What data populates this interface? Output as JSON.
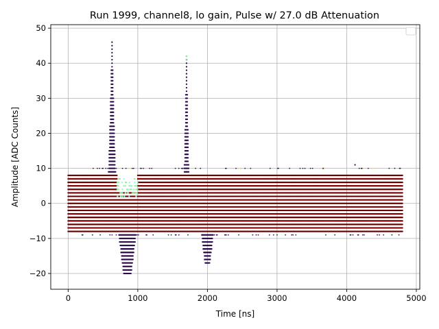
{
  "chart_data": {
    "type": "scatter",
    "title": "Run 1999, channel8, lo gain, Pulse w/ 27.0 dB Attenuation",
    "xlabel": "Time [ns]",
    "ylabel": "Amplitude [ADC Counts]",
    "xlim": [
      -250,
      5050
    ],
    "ylim": [
      -24.5,
      51
    ],
    "xticks": [
      0,
      1000,
      2000,
      3000,
      4000,
      5000
    ],
    "xtick_labels": [
      "0",
      "1000",
      "2000",
      "3000",
      "4000",
      "5000"
    ],
    "yticks": [
      -20,
      -10,
      0,
      10,
      20,
      30,
      40,
      50
    ],
    "ytick_labels": [
      "−20",
      "−10",
      "0",
      "10",
      "20",
      "30",
      "40",
      "50"
    ],
    "grid": true,
    "legend": "top-right (empty)",
    "sample_spacing_ns": 10,
    "time_range_ns": [
      0,
      4800
    ],
    "baseline": {
      "low": -8,
      "high": 8,
      "sparse_low": -9,
      "sparse_high": 10,
      "step": 1
    },
    "features": [
      {
        "label": "pulse 1 peak",
        "center_ns": 630,
        "peak": 46
      },
      {
        "label": "pulse 1 undershoot",
        "center_ns": 850,
        "min": -20
      },
      {
        "label": "pulse 2 peak",
        "center_ns": 1700,
        "peak": 42
      },
      {
        "label": "pulse 2 undershoot",
        "center_ns": 2000,
        "min": -17
      }
    ],
    "series_colors": [
      "#6b0000",
      "#800000",
      "#2d0a4e",
      "#90ee90",
      "#ffd700",
      "#7fffd4"
    ]
  }
}
